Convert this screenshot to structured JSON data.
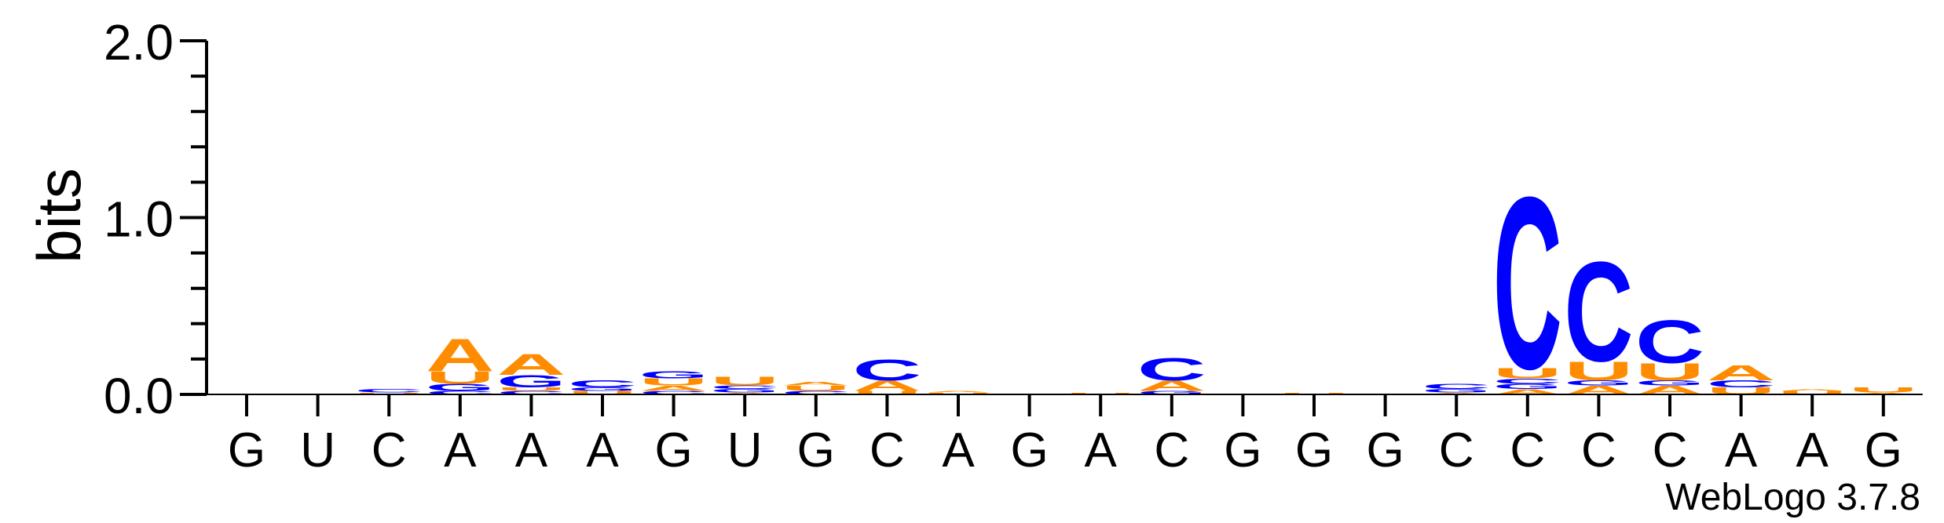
{
  "chart_data": {
    "type": "sequence-logo",
    "ylabel": "bits",
    "ylim": [
      0,
      2.0
    ],
    "yticks": [
      "0.0",
      "1.0",
      "2.0"
    ],
    "credit": "WebLogo 3.7.8",
    "colors": {
      "A": "#ff8c00",
      "U": "#ff8c00",
      "C": "#0000ff",
      "G": "#0000ff"
    },
    "positions": [
      {
        "label": "G",
        "stack": []
      },
      {
        "label": "U",
        "stack": []
      },
      {
        "label": "C",
        "stack": [
          {
            "base": "U",
            "h": 0.01
          },
          {
            "base": "C",
            "h": 0.02
          }
        ]
      },
      {
        "label": "A",
        "stack": [
          {
            "base": "C",
            "h": 0.02
          },
          {
            "base": "G",
            "h": 0.04
          },
          {
            "base": "U",
            "h": 0.07
          },
          {
            "base": "A",
            "h": 0.19
          }
        ]
      },
      {
        "label": "A",
        "stack": [
          {
            "base": "C",
            "h": 0.02
          },
          {
            "base": "U",
            "h": 0.02
          },
          {
            "base": "G",
            "h": 0.07
          },
          {
            "base": "A",
            "h": 0.12
          }
        ]
      },
      {
        "label": "A",
        "stack": [
          {
            "base": "U",
            "h": 0.02
          },
          {
            "base": "G",
            "h": 0.02
          },
          {
            "base": "C",
            "h": 0.04
          }
        ]
      },
      {
        "label": "G",
        "stack": [
          {
            "base": "C",
            "h": 0.02
          },
          {
            "base": "A",
            "h": 0.03
          },
          {
            "base": "U",
            "h": 0.04
          },
          {
            "base": "G",
            "h": 0.04
          }
        ]
      },
      {
        "label": "U",
        "stack": [
          {
            "base": "A",
            "h": 0.01
          },
          {
            "base": "G",
            "h": 0.02
          },
          {
            "base": "C",
            "h": 0.02
          },
          {
            "base": "U",
            "h": 0.05
          }
        ]
      },
      {
        "label": "G",
        "stack": [
          {
            "base": "C",
            "h": 0.02
          },
          {
            "base": "U",
            "h": 0.03
          },
          {
            "base": "A",
            "h": 0.02
          }
        ]
      },
      {
        "label": "C",
        "stack": [
          {
            "base": "U",
            "h": 0.02
          },
          {
            "base": "A",
            "h": 0.06
          },
          {
            "base": "C",
            "h": 0.12
          }
        ]
      },
      {
        "label": "A",
        "stack": [
          {
            "base": "U",
            "h": 0.01
          },
          {
            "base": "A",
            "h": 0.01
          }
        ]
      },
      {
        "label": "G",
        "stack": []
      },
      {
        "label": "A",
        "stack": [
          {
            "base": "U",
            "h": 0.01
          }
        ]
      },
      {
        "label": "C",
        "stack": [
          {
            "base": "G",
            "h": 0.02
          },
          {
            "base": "A",
            "h": 0.06
          },
          {
            "base": "C",
            "h": 0.13
          }
        ]
      },
      {
        "label": "G",
        "stack": []
      },
      {
        "label": "G",
        "stack": [
          {
            "base": "U",
            "h": 0.01
          }
        ]
      },
      {
        "label": "G",
        "stack": []
      },
      {
        "label": "C",
        "stack": [
          {
            "base": "A",
            "h": 0.01
          },
          {
            "base": "G",
            "h": 0.02
          },
          {
            "base": "C",
            "h": 0.03
          }
        ]
      },
      {
        "label": "C",
        "stack": [
          {
            "base": "A",
            "h": 0.03
          },
          {
            "base": "G",
            "h": 0.03
          },
          {
            "base": "C",
            "h": 0.03
          },
          {
            "base": "U",
            "h": 0.06
          },
          {
            "base": "C",
            "h": 1.0
          }
        ]
      },
      {
        "label": "C",
        "stack": [
          {
            "base": "A",
            "h": 0.05
          },
          {
            "base": "G",
            "h": 0.03
          },
          {
            "base": "U",
            "h": 0.11
          },
          {
            "base": "C",
            "h": 0.58
          }
        ]
      },
      {
        "label": "C",
        "stack": [
          {
            "base": "A",
            "h": 0.05
          },
          {
            "base": "G",
            "h": 0.03
          },
          {
            "base": "U",
            "h": 0.1
          },
          {
            "base": "C",
            "h": 0.25
          }
        ]
      },
      {
        "label": "A",
        "stack": [
          {
            "base": "U",
            "h": 0.04
          },
          {
            "base": "C",
            "h": 0.04
          },
          {
            "base": "A",
            "h": 0.09
          }
        ]
      },
      {
        "label": "A",
        "stack": [
          {
            "base": "U",
            "h": 0.02
          },
          {
            "base": "A",
            "h": 0.01
          }
        ]
      },
      {
        "label": "G",
        "stack": [
          {
            "base": "A",
            "h": 0.01
          },
          {
            "base": "U",
            "h": 0.03
          }
        ]
      }
    ]
  }
}
